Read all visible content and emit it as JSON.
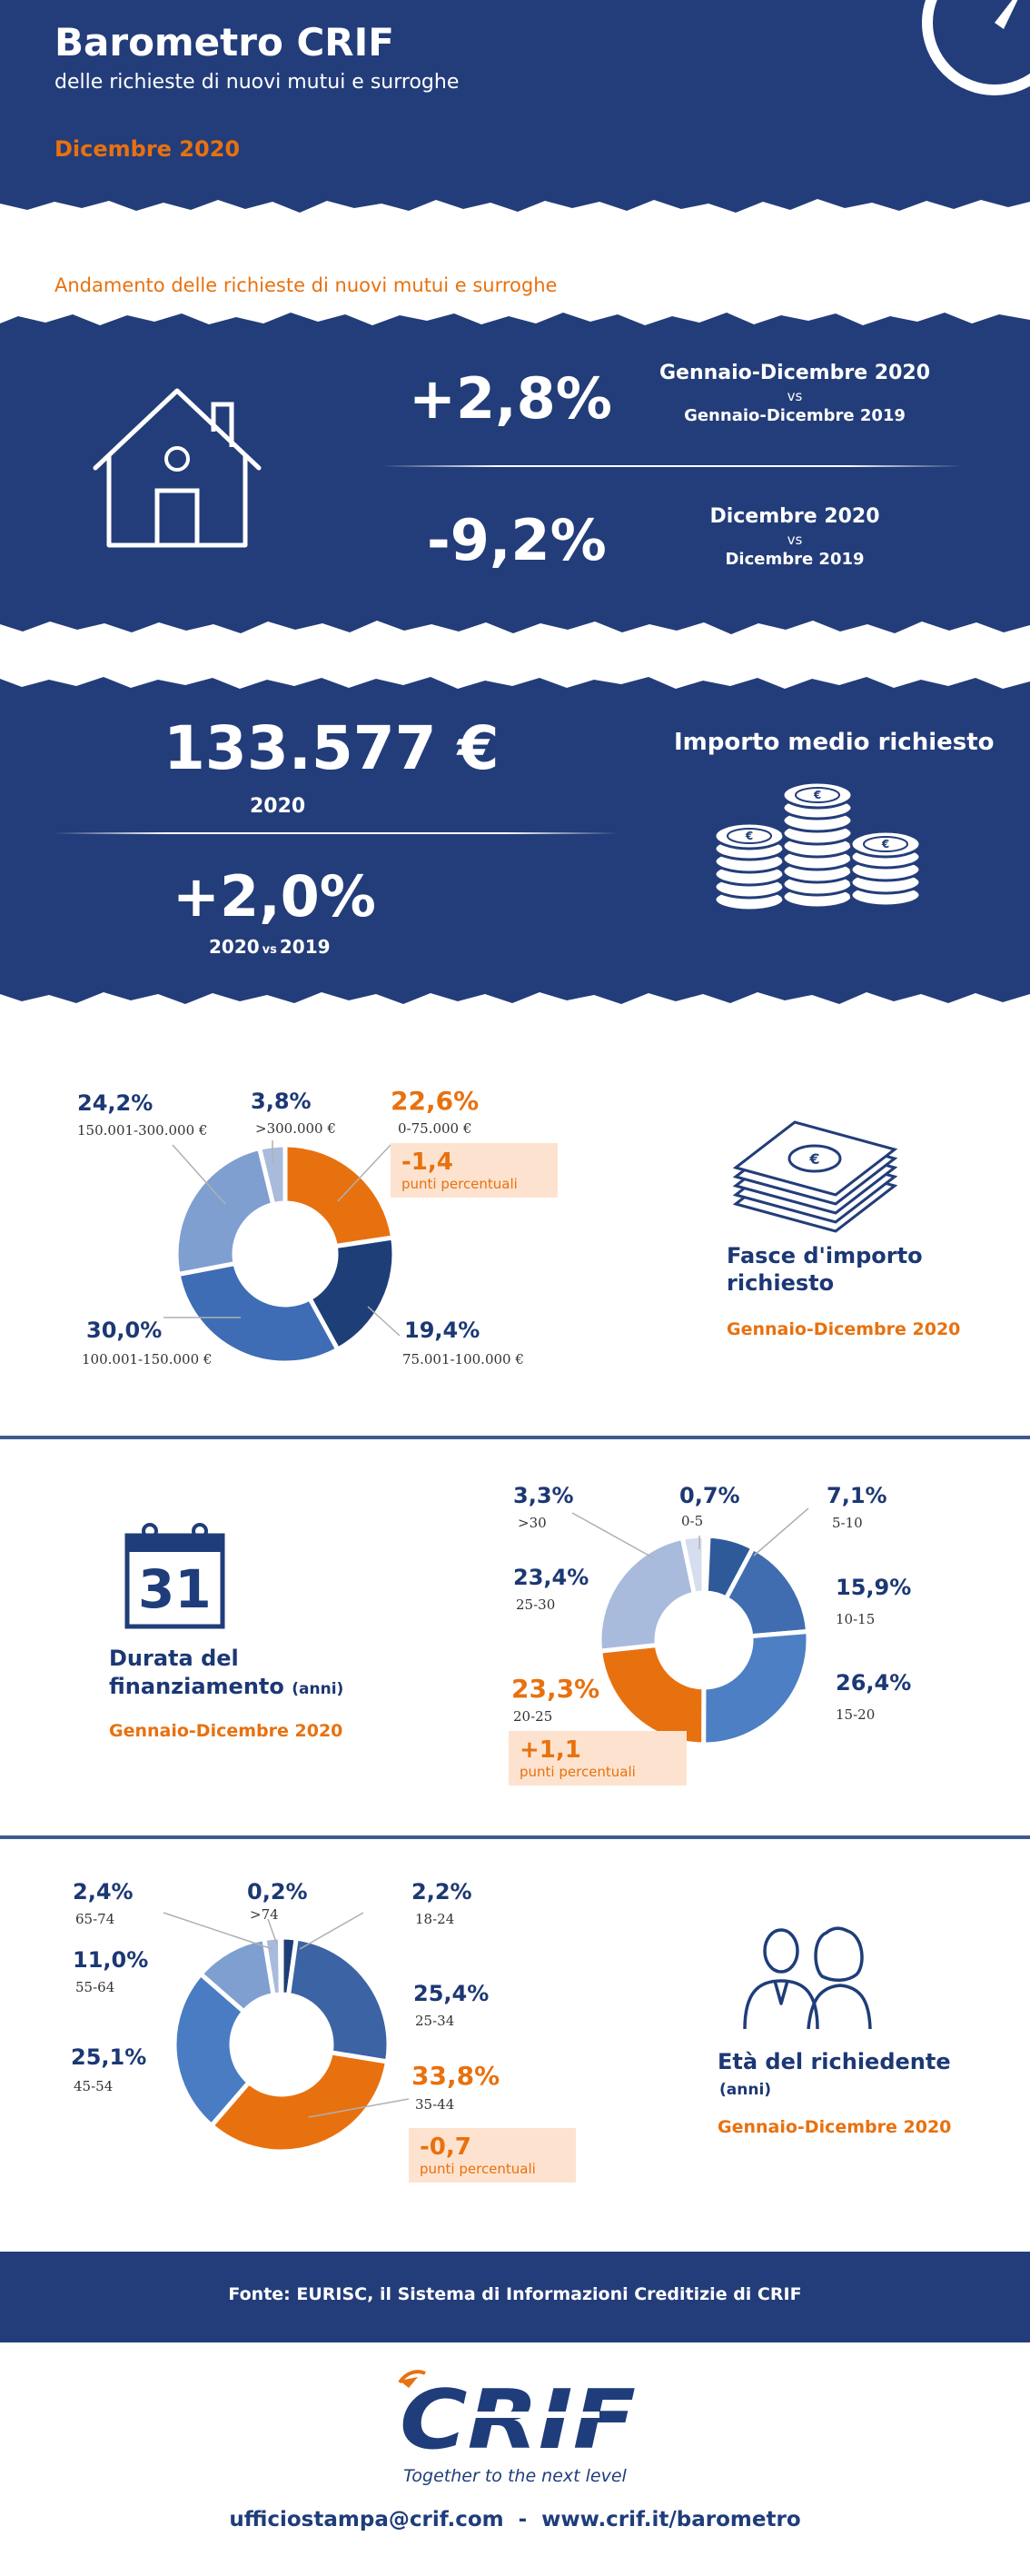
{
  "header": {
    "title": "Barometro CRIF",
    "subtitle": "delle richieste di nuovi mutui e surroghe",
    "date": "Dicembre 2020"
  },
  "trend": {
    "heading": "Andamento delle richieste di nuovi mutui e surroghe",
    "items": [
      {
        "value": "+2,8%",
        "period_a": "Gennaio-Dicembre 2020",
        "vs": "vs",
        "period_b": "Gennaio-Dicembre 2019"
      },
      {
        "value": "-9,2%",
        "period_a": "Dicembre 2020",
        "vs": "vs",
        "period_b": "Dicembre 2019"
      }
    ]
  },
  "importo": {
    "amount": "133.577 €",
    "year": "2020",
    "change": "+2,0%",
    "change_label_a": "2020",
    "change_label_vs": "vs",
    "change_label_b": "2019",
    "label": "Importo medio richiesto"
  },
  "fasce": {
    "title_line1": "Fasce d'importo",
    "title_line2": "richiesto",
    "period": "Gennaio-Dicembre 2020",
    "delta_value": "-1,4",
    "delta_label": "punti percentuali"
  },
  "durata": {
    "title_line1": "Durata del",
    "title_line2": "finanziamento",
    "title_unit": "(anni)",
    "calendar_day": "31",
    "period": "Gennaio-Dicembre 2020",
    "delta_value": "+1,1",
    "delta_label": "punti percentuali"
  },
  "eta": {
    "title": "Età del richiedente",
    "unit": "(anni)",
    "period": "Gennaio-Dicembre 2020",
    "delta_value": "-0,7",
    "delta_label": "punti percentuali"
  },
  "chart_data": [
    {
      "type": "pie",
      "title": "Fasce d'importo richiesto",
      "categories": [
        "0-75.000 €",
        "75.001-100.000  €",
        "100.001-150.000 €",
        "150.001-300.000 €",
        ">300.000 €"
      ],
      "values": [
        22.6,
        19.4,
        30.0,
        24.2,
        3.8
      ],
      "labels": [
        "22,6%",
        "19,4%",
        "30,0%",
        "24,2%",
        "3,8%"
      ],
      "colors": [
        "#e8710f",
        "#1e3e78",
        "#3e6db5",
        "#7f9fd1",
        "#a9bbdc"
      ]
    },
    {
      "type": "pie",
      "title": "Durata del finanziamento (anni)",
      "categories": [
        "0-5",
        "5-10",
        "10-15",
        "15-20",
        "20-25",
        "25-30",
        ">30"
      ],
      "values": [
        0.7,
        7.1,
        15.9,
        26.4,
        23.3,
        23.4,
        3.3
      ],
      "labels": [
        "0,7%",
        "7,1%",
        "15,9%",
        "26,4%",
        "23,3%",
        "23,4%",
        "3,3%"
      ],
      "colors": [
        "#1e3e78",
        "#2f5a9a",
        "#3f6db0",
        "#4d7fc4",
        "#e8710f",
        "#a9bbdc",
        "#d5deee"
      ]
    },
    {
      "type": "pie",
      "title": "Età del richiedente (anni)",
      "categories": [
        "18-24",
        "25-34",
        "35-44",
        "45-54",
        "55-64",
        "65-74",
        ">74"
      ],
      "values": [
        2.2,
        25.4,
        33.8,
        25.1,
        11.0,
        2.4,
        0.2
      ],
      "labels": [
        "2,2%",
        "25,4%",
        "33,8%",
        "25,1%",
        "11,0%",
        "2,4%",
        "0,2%"
      ],
      "colors": [
        "#1e3e78",
        "#3c63a3",
        "#e8710f",
        "#4a7cc4",
        "#7f9fd1",
        "#a9bbdc",
        "#c9d4ea"
      ]
    }
  ],
  "footer": {
    "source": "Fonte: EURISC, il Sistema di Informazioni Creditizie di CRIF",
    "logo": "CRIF",
    "tagline": "Together to the next level",
    "contacts": "ufficiostampa@crif.com  -  www.crif.it/barometro"
  }
}
